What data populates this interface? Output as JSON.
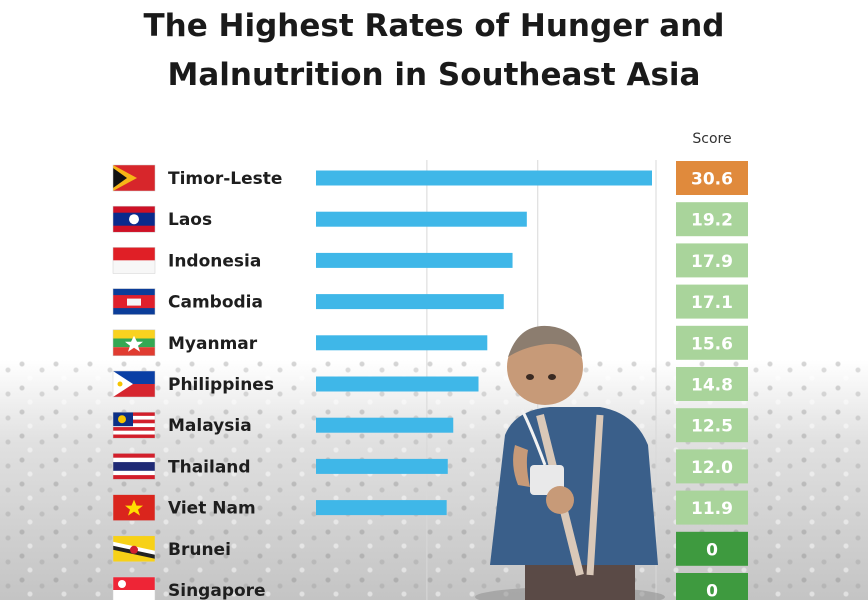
{
  "title_line1": "The Highest Rates of Hunger and",
  "title_line2": "Malnutrition in Southeast Asia",
  "score_header": "Score",
  "colors": {
    "bar": "#3fb7e8",
    "score_top": "#e08a3c",
    "score_light": "#a9d49b",
    "score_dark": "#3e9a3f"
  },
  "chart_data": {
    "type": "bar",
    "orientation": "horizontal",
    "categories": [
      "Timor-Leste",
      "Laos",
      "Indonesia",
      "Cambodia",
      "Myanmar",
      "Philippines",
      "Malaysia",
      "Thailand",
      "Viet Nam",
      "Brunei",
      "Singapore"
    ],
    "values": [
      30.6,
      19.2,
      17.9,
      17.1,
      15.6,
      14.8,
      12.5,
      12.0,
      11.9,
      0,
      0
    ],
    "value_labels": [
      "30.6",
      "19.2",
      "17.9",
      "17.1",
      "15.6",
      "14.8",
      "12.5",
      "12.0",
      "11.9",
      "0",
      "0"
    ],
    "xlim": [
      0,
      30.6
    ],
    "grid": true
  }
}
